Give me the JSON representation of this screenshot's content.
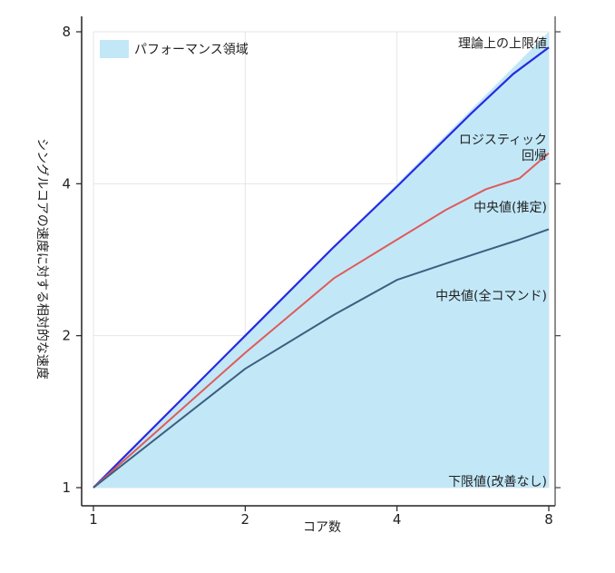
{
  "chart_data": {
    "type": "line",
    "xscale": "log2",
    "yscale": "log2",
    "x": [
      1,
      2,
      4,
      8
    ],
    "xlim": [
      1,
      8
    ],
    "ylim": [
      1,
      8
    ],
    "xticks": [
      "1",
      "2",
      "4",
      "8"
    ],
    "yticks": [
      "1",
      "2",
      "4",
      "8"
    ],
    "xlabel": "コア数",
    "ylabel": "シングルコアの速度に対する相対的な速度",
    "grid": true,
    "legend": {
      "position": "top-left",
      "label": "パフォーマンス領域",
      "color": "#c2e8f8"
    },
    "region": {
      "color": "#c2e8f8",
      "upper": [
        [
          1,
          1
        ],
        [
          8,
          8
        ]
      ],
      "lower": [
        [
          1,
          1
        ],
        [
          8,
          1
        ]
      ]
    },
    "series": [
      {
        "color": "#2929e0",
        "points": [
          [
            1,
            1
          ],
          [
            2,
            2
          ],
          [
            3,
            3.0
          ],
          [
            4,
            3.95
          ],
          [
            5.6,
            5.5
          ],
          [
            6.8,
            6.6
          ],
          [
            8,
            7.45
          ]
        ]
      },
      {
        "color": "#e05a5a",
        "points": [
          [
            1,
            1
          ],
          [
            2,
            1.85
          ],
          [
            3,
            2.6
          ],
          [
            4,
            3.1
          ],
          [
            5,
            3.55
          ],
          [
            6,
            3.9
          ],
          [
            7,
            4.1
          ],
          [
            8,
            4.6
          ]
        ]
      },
      {
        "color": "#3d5f80",
        "points": [
          [
            1,
            1
          ],
          [
            2,
            1.72
          ],
          [
            3,
            2.2
          ],
          [
            4,
            2.58
          ],
          [
            5,
            2.78
          ],
          [
            6,
            2.95
          ],
          [
            7,
            3.1
          ],
          [
            8,
            3.25
          ]
        ]
      }
    ],
    "annotations": [
      {
        "text": "理論上の上限値",
        "x": 8,
        "y": 7.6
      },
      {
        "text": "ロジスティック",
        "x": 8,
        "y": 4.9
      },
      {
        "text": "回帰",
        "x": 8,
        "y": 4.55
      },
      {
        "text": "中央値(推定)",
        "x": 8,
        "y": 3.6
      },
      {
        "text": "中央値(全コマンド)",
        "x": 8,
        "y": 2.4
      },
      {
        "text": "下限値(改善なし)",
        "x": 8,
        "y": 1.03
      }
    ]
  }
}
